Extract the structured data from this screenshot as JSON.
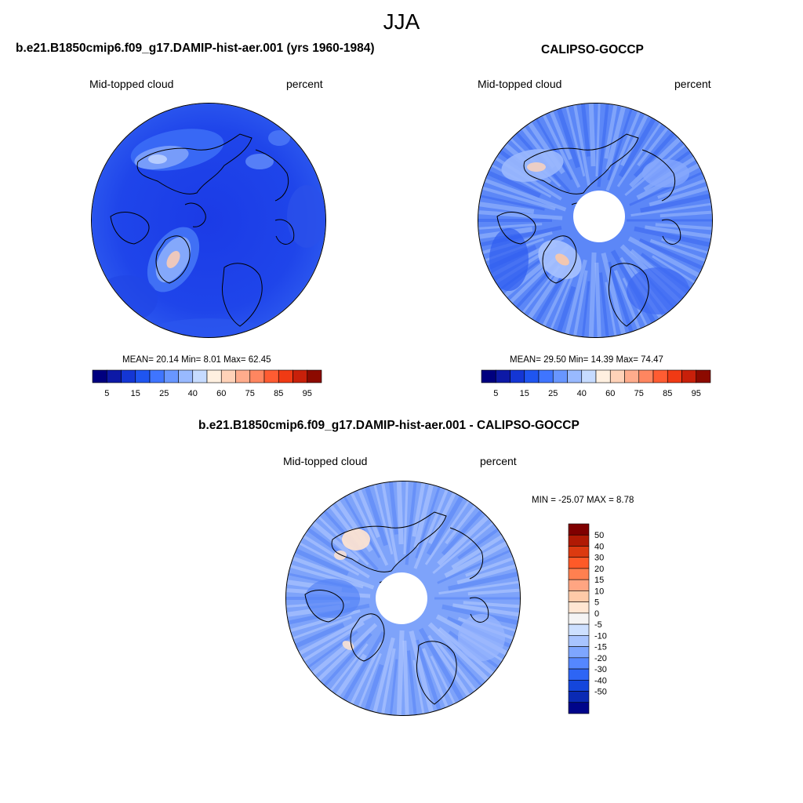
{
  "season": "JJA",
  "colors": {
    "ocean_low": "#0a35d0",
    "land_outline": "#000000",
    "background": "#ffffff"
  },
  "panels": [
    {
      "title": "b.e21.B1850cmip6.f09_g17.DAMIP-hist-aer.001 (yrs 1960-1984)",
      "variable": "Mid-topped cloud",
      "units": "percent",
      "stats": "MEAN=  20.14  Min=   8.01  Max=  62.45",
      "has_hole": false
    },
    {
      "title": "CALIPSO-GOCCP",
      "variable": "Mid-topped cloud",
      "units": "percent",
      "stats": "MEAN=  29.50  Min=  14.39  Max=  74.47",
      "has_hole": true
    }
  ],
  "abs_colorbar": {
    "colors": [
      "#00007f",
      "#0d19a6",
      "#1436d4",
      "#1f55f0",
      "#3f75ff",
      "#6896ff",
      "#98b9ff",
      "#c6dbff",
      "#fff0e0",
      "#ffd2b8",
      "#ffac8c",
      "#ff8660",
      "#ff5c32",
      "#f03a14",
      "#c8200a",
      "#8c0a00"
    ],
    "labels": [
      "5",
      "15",
      "25",
      "40",
      "60",
      "75",
      "85",
      "95"
    ]
  },
  "diff_panel": {
    "title": "b.e21.B1850cmip6.f09_g17.DAMIP-hist-aer.001 - CALIPSO-GOCCP",
    "variable": "Mid-topped cloud",
    "units": "percent",
    "stats": "MIN = -25.07 MAX =   8.78",
    "colorbar_colors": [
      "#7f0000",
      "#b01a04",
      "#dc3a10",
      "#ff5a28",
      "#ff8050",
      "#ffa582",
      "#ffcaa8",
      "#ffe6d2",
      "#f4f4f4",
      "#cde0ff",
      "#a8c4ff",
      "#7ea6ff",
      "#5587ff",
      "#2d65f5",
      "#1446dc",
      "#0a2ab4",
      "#00058a"
    ],
    "colorbar_labels": [
      "50",
      "40",
      "30",
      "20",
      "15",
      "10",
      "5",
      "0",
      "-5",
      "-10",
      "-15",
      "-20",
      "-30",
      "-40",
      "-50"
    ]
  }
}
